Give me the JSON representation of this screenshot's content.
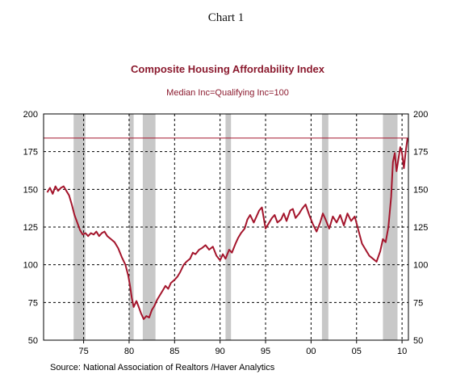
{
  "page": {
    "caption": "Chart 1"
  },
  "chart_data": {
    "type": "line",
    "title": "Composite Housing Affordability Index",
    "subtitle": "Median Inc=Qualifying Inc=100",
    "source": "Source:  National Association of Realtors /Haver Analytics",
    "xlabel": "",
    "ylabel": "",
    "xlim": [
      1970.6,
      2010.7
    ],
    "ylim": [
      50,
      200
    ],
    "y_ticks": [
      "50",
      "75",
      "100",
      "125",
      "150",
      "175",
      "200"
    ],
    "x_ticks": [
      "75",
      "80",
      "85",
      "90",
      "95",
      "00",
      "05",
      "10"
    ],
    "x_tick_years": [
      1975,
      1980,
      1985,
      1990,
      1995,
      2000,
      2005,
      2010
    ],
    "vertical_dashed_years": [
      1975,
      1980,
      1985,
      1990,
      1995,
      2000,
      2005,
      2010
    ],
    "grid": true,
    "reference_line": 184,
    "recessions": [
      [
        1973.9,
        1975.2
      ],
      [
        1980.0,
        1980.5
      ],
      [
        1981.5,
        1982.9
      ],
      [
        1990.6,
        1991.2
      ],
      [
        2001.2,
        2001.9
      ],
      [
        2007.9,
        2009.5
      ]
    ],
    "colors": {
      "line": "#a4152c",
      "recession": "#c8c8c8",
      "title": "#8b1a2e"
    },
    "series": [
      {
        "x": [
          1971.0,
          1971.3,
          1971.6,
          1971.9,
          1972.2,
          1972.5,
          1972.8,
          1973.1,
          1973.4,
          1973.7,
          1974.0,
          1974.3,
          1974.6,
          1974.9,
          1975.2,
          1975.5,
          1975.8,
          1976.1,
          1976.4,
          1976.7,
          1977.0,
          1977.3,
          1977.6,
          1978.0,
          1978.4,
          1978.8,
          1979.2,
          1979.6,
          1979.9,
          1980.1,
          1980.3,
          1980.5,
          1980.8,
          1981.0,
          1981.3,
          1981.6,
          1981.9,
          1982.2,
          1982.5,
          1982.8,
          1983.1,
          1983.4,
          1983.7,
          1984.0,
          1984.3,
          1984.6,
          1985.0,
          1985.3,
          1985.6,
          1986.0,
          1986.3,
          1986.7,
          1987.0,
          1987.3,
          1987.7,
          1988.0,
          1988.4,
          1988.8,
          1989.2,
          1989.6,
          1990.0,
          1990.3,
          1990.6,
          1991.0,
          1991.3,
          1991.7,
          1992.0,
          1992.3,
          1992.7,
          1993.0,
          1993.3,
          1993.7,
          1994.0,
          1994.3,
          1994.6,
          1995.0,
          1995.3,
          1995.7,
          1996.0,
          1996.3,
          1996.7,
          1997.0,
          1997.3,
          1997.7,
          1998.0,
          1998.3,
          1998.7,
          1999.0,
          1999.4,
          1999.8,
          2000.2,
          2000.6,
          2001.0,
          2001.3,
          2001.6,
          2002.0,
          2002.4,
          2002.8,
          2003.2,
          2003.6,
          2004.0,
          2004.4,
          2004.8,
          2005.2,
          2005.6,
          2006.0,
          2006.4,
          2006.8,
          2007.2,
          2007.6,
          2007.9,
          2008.2,
          2008.5,
          2008.8,
          2009.0,
          2009.2,
          2009.4,
          2009.6,
          2009.8,
          2010.0,
          2010.2,
          2010.4,
          2010.6
        ],
        "values": [
          148,
          151,
          147,
          152,
          149,
          151,
          152,
          149,
          146,
          140,
          133,
          128,
          123,
          120,
          121,
          119,
          121,
          120,
          122,
          119,
          121,
          122,
          119,
          117,
          115,
          111,
          105,
          100,
          93,
          86,
          78,
          72,
          76,
          73,
          68,
          64,
          66,
          65,
          70,
          73,
          77,
          80,
          83,
          86,
          84,
          88,
          90,
          92,
          95,
          100,
          102,
          104,
          108,
          107,
          110,
          111,
          113,
          110,
          112,
          106,
          103,
          107,
          104,
          110,
          108,
          114,
          118,
          121,
          124,
          130,
          133,
          128,
          132,
          136,
          138,
          124,
          127,
          131,
          133,
          128,
          130,
          134,
          129,
          136,
          137,
          131,
          134,
          137,
          140,
          133,
          127,
          122,
          128,
          134,
          130,
          124,
          132,
          128,
          133,
          126,
          134,
          129,
          132,
          123,
          114,
          110,
          106,
          104,
          102,
          109,
          117,
          115,
          125,
          145,
          168,
          174,
          162,
          170,
          178,
          174,
          164,
          175,
          184
        ]
      }
    ]
  }
}
